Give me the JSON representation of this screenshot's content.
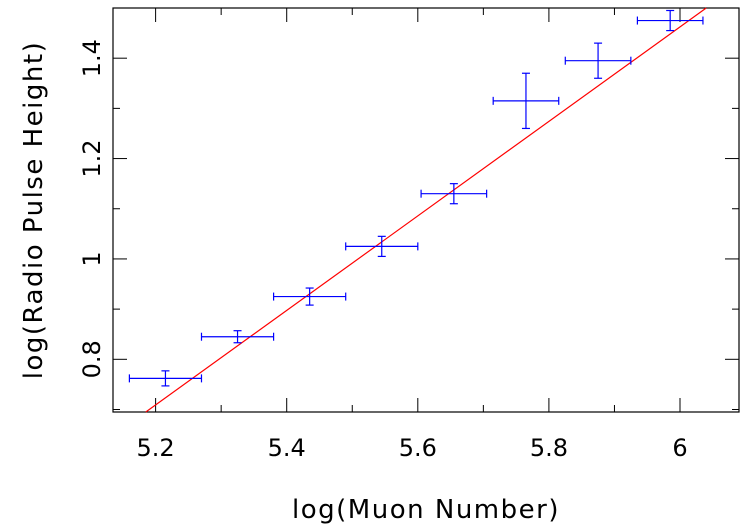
{
  "chart_data": {
    "type": "scatter",
    "xlabel": "log(Muon Number)",
    "ylabel": "log(Radio Pulse Height)",
    "xlim": [
      5.135,
      6.09
    ],
    "ylim": [
      0.695,
      1.5
    ],
    "x_ticks": [
      5.2,
      5.4,
      5.6,
      5.8,
      6.0
    ],
    "x_tick_labels": [
      "5.2",
      "5.4",
      "5.6",
      "5.8",
      "6"
    ],
    "y_ticks": [
      0.8,
      1.0,
      1.2,
      1.4
    ],
    "y_tick_labels": [
      "0.8",
      "1",
      "1.2",
      "1.4"
    ],
    "x_minor_step": 0.1,
    "y_minor_step": 0.1,
    "grid": false,
    "series": [
      {
        "kind": "data-with-errors",
        "color": "#0000ff",
        "points": [
          {
            "x": 5.215,
            "y": 0.762,
            "x_err": 0.055,
            "y_err": 0.015
          },
          {
            "x": 5.325,
            "y": 0.845,
            "x_err": 0.055,
            "y_err": 0.012
          },
          {
            "x": 5.435,
            "y": 0.925,
            "x_err": 0.055,
            "y_err": 0.017
          },
          {
            "x": 5.545,
            "y": 1.025,
            "x_err": 0.055,
            "y_err": 0.02
          },
          {
            "x": 5.655,
            "y": 1.13,
            "x_err": 0.05,
            "y_err": 0.02
          },
          {
            "x": 5.765,
            "y": 1.315,
            "x_err": 0.05,
            "y_err": 0.055
          },
          {
            "x": 5.875,
            "y": 1.395,
            "x_err": 0.05,
            "y_err": 0.035
          },
          {
            "x": 5.985,
            "y": 1.475,
            "x_err": 0.05,
            "y_err": 0.02
          }
        ]
      },
      {
        "kind": "fit-line",
        "color": "#ff0000",
        "x": [
          5.185,
          6.04
        ],
        "y": [
          0.695,
          1.5
        ]
      }
    ]
  }
}
